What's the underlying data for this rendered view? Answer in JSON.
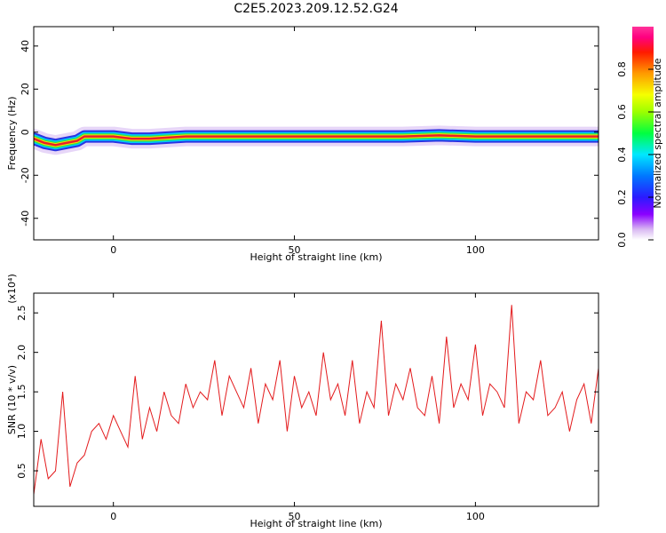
{
  "title": "C2E5.2023.209.12.52.G24",
  "colors": {
    "snr_line": "#e31a1c",
    "background": "#ffffff",
    "axis": "#000000",
    "ridge_core": "#e8202a",
    "ridge_mid": "#f2e500",
    "ridge_outer": "#2ee24a",
    "ridge_halo": "#1f2be0",
    "ridge_fringe": "#c9a3ef"
  },
  "chart_data": [
    {
      "type": "heatmap",
      "xlabel": "Height of straight line (km)",
      "ylabel": "Frequency (Hz)",
      "xlim": [
        -22,
        134
      ],
      "ylim": [
        -50,
        49
      ],
      "xticks": [
        0,
        50,
        100
      ],
      "yticks": [
        -40,
        -20,
        0,
        20,
        40
      ],
      "ridge_frequency": {
        "x": [
          -22,
          -19,
          -16,
          -13,
          -10,
          -8,
          -5,
          0,
          5,
          10,
          20,
          30,
          40,
          50,
          60,
          70,
          80,
          90,
          100,
          110,
          120,
          134
        ],
        "y": [
          -3,
          -5,
          -6,
          -5,
          -4,
          -2,
          -2,
          -2,
          -3,
          -3,
          -2,
          -2,
          -2,
          -2,
          -2,
          -2,
          -2,
          -1.5,
          -2,
          -2,
          -2,
          -2
        ]
      },
      "colorbar": {
        "label": "Normalized spectral amplitude",
        "range": [
          0.0,
          1.0
        ],
        "ticks": [
          "0.0",
          "0.2",
          "0.4",
          "0.6",
          "0.8"
        ]
      }
    },
    {
      "type": "line",
      "xlabel": "Height of straight line (km)",
      "ylabel": "SNR (10 * v/v)",
      "multiplier": "(x10⁴)",
      "xlim": [
        -22,
        134
      ],
      "ylim": [
        0.05,
        2.75
      ],
      "xticks": [
        0,
        50,
        100
      ],
      "yticks": [
        "0.5",
        "1.0",
        "1.5",
        "2.0",
        "2.5"
      ],
      "series": [
        {
          "x": [
            -22,
            -20,
            -18,
            -16,
            -14,
            -12,
            -10,
            -8,
            -6,
            -4,
            -2,
            0,
            2,
            4,
            6,
            8,
            10,
            12,
            14,
            16,
            18,
            20,
            22,
            24,
            26,
            28,
            30,
            32,
            34,
            36,
            38,
            40,
            42,
            44,
            46,
            48,
            50,
            52,
            54,
            56,
            58,
            60,
            62,
            64,
            66,
            68,
            70,
            72,
            74,
            76,
            78,
            80,
            82,
            84,
            86,
            88,
            90,
            92,
            94,
            96,
            98,
            100,
            102,
            104,
            106,
            108,
            110,
            112,
            114,
            116,
            118,
            120,
            122,
            124,
            126,
            128,
            130,
            132,
            134
          ],
          "y": [
            0.2,
            0.9,
            0.4,
            0.5,
            1.5,
            0.3,
            0.6,
            0.7,
            1.0,
            1.1,
            0.9,
            1.2,
            1.0,
            0.8,
            1.7,
            0.9,
            1.3,
            1.0,
            1.5,
            1.2,
            1.1,
            1.6,
            1.3,
            1.5,
            1.4,
            1.9,
            1.2,
            1.7,
            1.5,
            1.3,
            1.8,
            1.1,
            1.6,
            1.4,
            1.9,
            1.0,
            1.7,
            1.3,
            1.5,
            1.2,
            2.0,
            1.4,
            1.6,
            1.2,
            1.9,
            1.1,
            1.5,
            1.3,
            2.4,
            1.2,
            1.6,
            1.4,
            1.8,
            1.3,
            1.2,
            1.7,
            1.1,
            2.2,
            1.3,
            1.6,
            1.4,
            2.1,
            1.2,
            1.6,
            1.5,
            1.3,
            2.6,
            1.1,
            1.5,
            1.4,
            1.9,
            1.2,
            1.3,
            1.5,
            1.0,
            1.4,
            1.6,
            1.1,
            1.8
          ]
        }
      ]
    }
  ]
}
